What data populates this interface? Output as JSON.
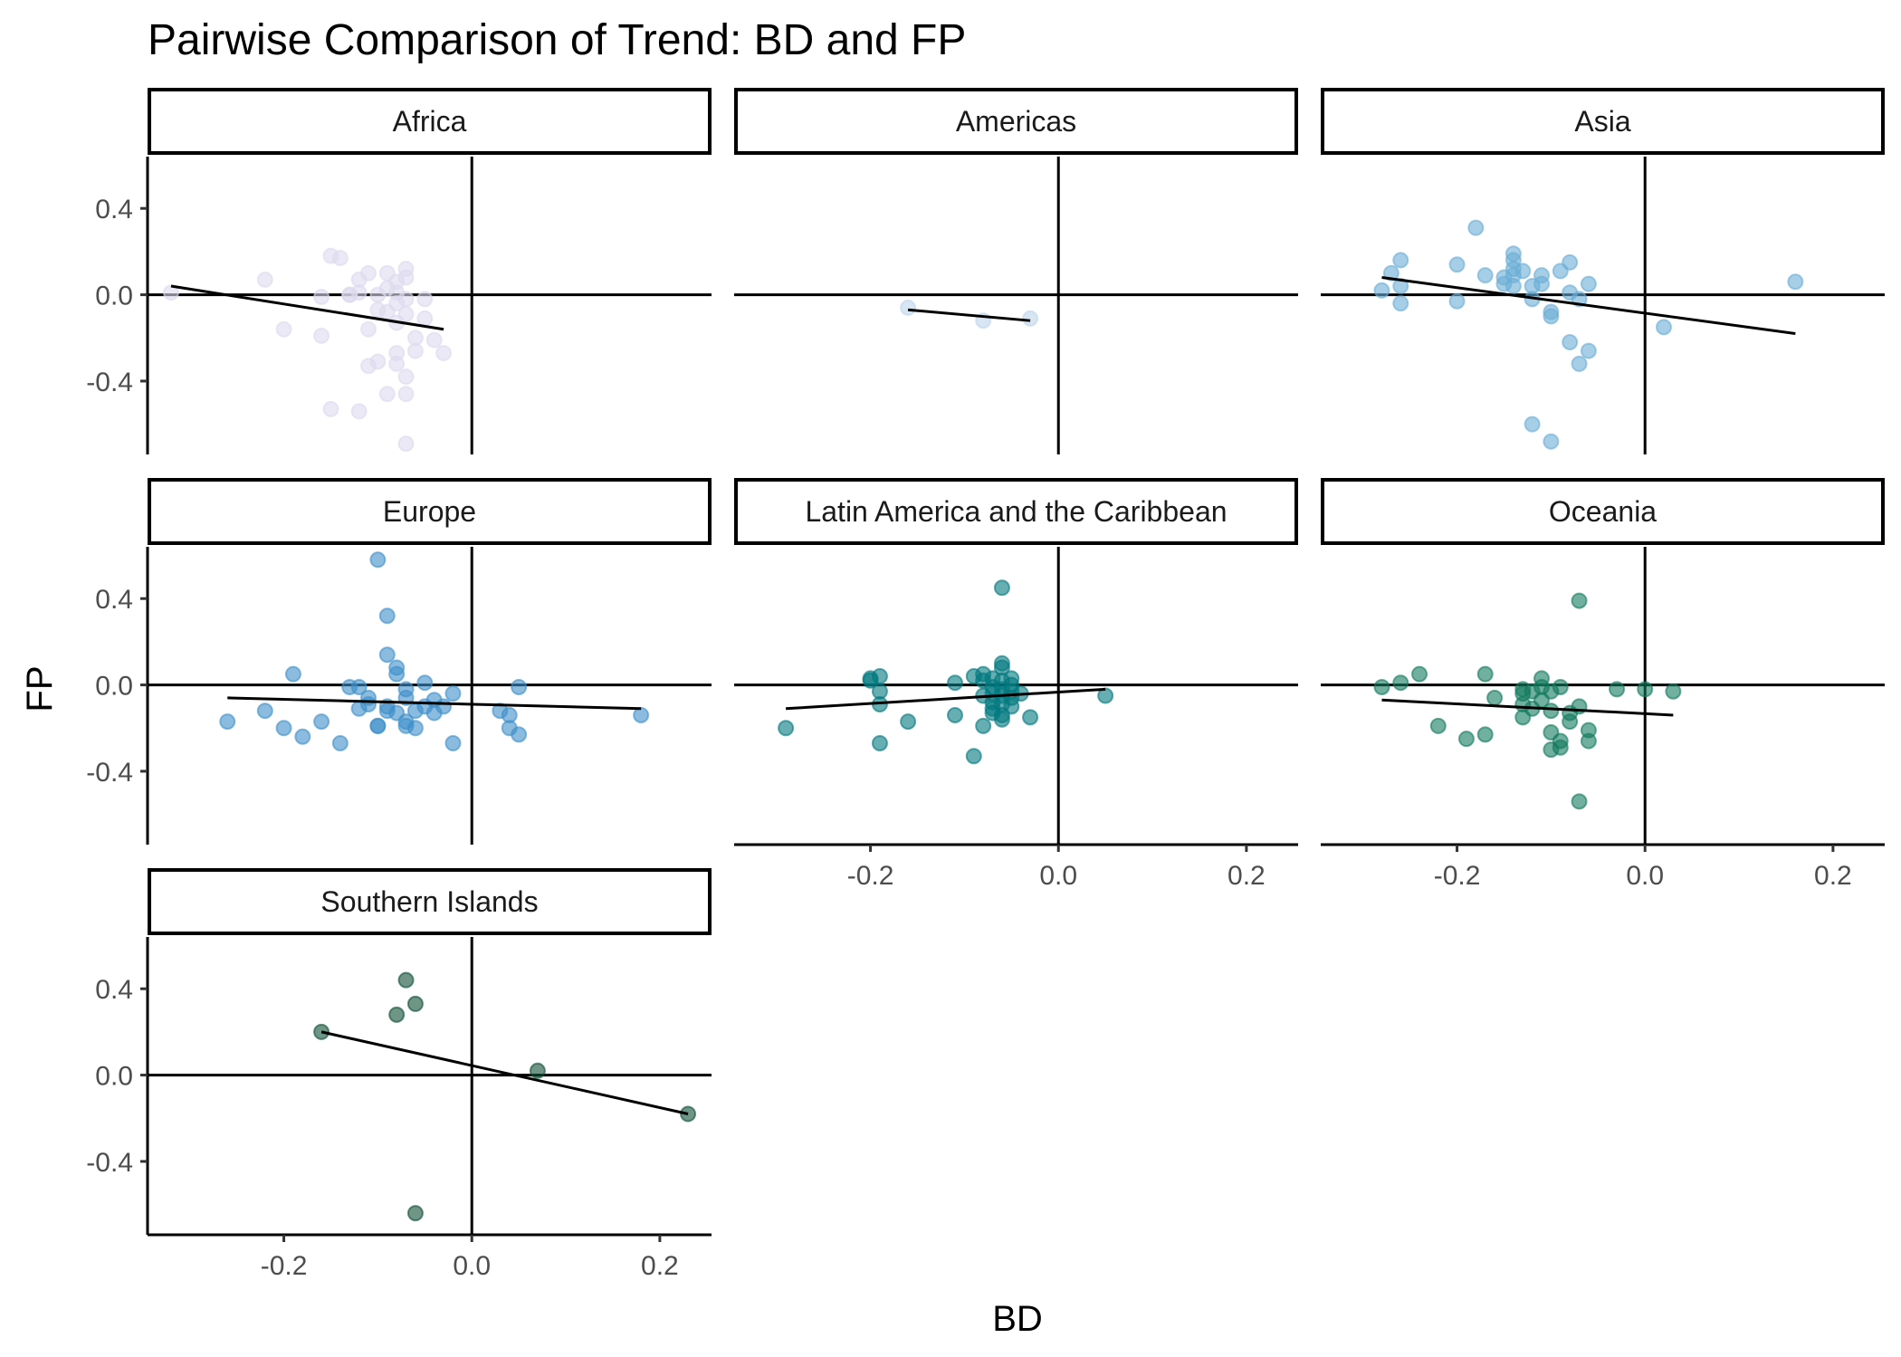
{
  "chart_data": {
    "type": "scatter",
    "title": "Pairwise Comparison of Trend: BD and FP",
    "xlabel": "BD",
    "ylabel": "FP",
    "xlim": [
      -0.345,
      0.255
    ],
    "ylim": [
      -0.74,
      0.64
    ],
    "x_ticks": [
      -0.2,
      0.0,
      0.2
    ],
    "x_tick_labels": [
      "-0.2",
      "0.0",
      "0.2"
    ],
    "y_ticks": [
      -0.4,
      0.0,
      0.4
    ],
    "y_tick_labels": [
      "-0.4",
      "0.0",
      "0.4"
    ],
    "reference_lines": {
      "x": 0,
      "y": 0
    },
    "grid": false,
    "legend": "none",
    "panels": [
      {
        "name": "Africa",
        "color": "#dcdaee",
        "trend": [
          [
            -0.32,
            0.04
          ],
          [
            -0.03,
            -0.16
          ]
        ],
        "points": [
          [
            -0.32,
            0.01
          ],
          [
            -0.22,
            0.07
          ],
          [
            -0.2,
            -0.16
          ],
          [
            -0.16,
            -0.01
          ],
          [
            -0.16,
            -0.19
          ],
          [
            -0.15,
            0.18
          ],
          [
            -0.14,
            0.17
          ],
          [
            -0.13,
            0.0
          ],
          [
            -0.12,
            0.07
          ],
          [
            -0.12,
            0.01
          ],
          [
            -0.11,
            0.1
          ],
          [
            -0.11,
            -0.16
          ],
          [
            -0.11,
            -0.33
          ],
          [
            -0.1,
            0.0
          ],
          [
            -0.1,
            -0.31
          ],
          [
            -0.09,
            0.1
          ],
          [
            -0.09,
            0.03
          ],
          [
            -0.09,
            -0.08
          ],
          [
            -0.09,
            -0.46
          ],
          [
            -0.08,
            0.06
          ],
          [
            -0.08,
            0.01
          ],
          [
            -0.08,
            -0.04
          ],
          [
            -0.08,
            -0.13
          ],
          [
            -0.08,
            -0.27
          ],
          [
            -0.08,
            -0.32
          ],
          [
            -0.07,
            0.12
          ],
          [
            -0.07,
            0.08
          ],
          [
            -0.07,
            -0.02
          ],
          [
            -0.07,
            -0.09
          ],
          [
            -0.07,
            -0.38
          ],
          [
            -0.07,
            -0.46
          ],
          [
            -0.07,
            -0.69
          ],
          [
            -0.06,
            -0.2
          ],
          [
            -0.06,
            -0.26
          ],
          [
            -0.05,
            -0.02
          ],
          [
            -0.05,
            -0.11
          ],
          [
            -0.04,
            -0.21
          ],
          [
            -0.03,
            -0.27
          ],
          [
            -0.15,
            -0.53
          ],
          [
            -0.12,
            -0.54
          ],
          [
            -0.13,
            0.0
          ],
          [
            -0.1,
            -0.07
          ]
        ]
      },
      {
        "name": "Americas",
        "color": "#bed5eb",
        "trend": [
          [
            -0.16,
            -0.07
          ],
          [
            -0.03,
            -0.12
          ]
        ],
        "points": [
          [
            -0.16,
            -0.06
          ],
          [
            -0.08,
            -0.12
          ],
          [
            -0.03,
            -0.11
          ]
        ]
      },
      {
        "name": "Asia",
        "color": "#6aaed6",
        "trend": [
          [
            -0.28,
            0.08
          ],
          [
            0.16,
            -0.18
          ]
        ],
        "points": [
          [
            -0.28,
            0.02
          ],
          [
            -0.27,
            0.1
          ],
          [
            -0.26,
            0.16
          ],
          [
            -0.26,
            0.04
          ],
          [
            -0.26,
            -0.04
          ],
          [
            -0.2,
            0.14
          ],
          [
            -0.2,
            -0.03
          ],
          [
            -0.18,
            0.31
          ],
          [
            -0.17,
            0.09
          ],
          [
            -0.15,
            0.08
          ],
          [
            -0.15,
            0.05
          ],
          [
            -0.14,
            0.19
          ],
          [
            -0.14,
            0.16
          ],
          [
            -0.14,
            0.12
          ],
          [
            -0.14,
            0.09
          ],
          [
            -0.14,
            0.04
          ],
          [
            -0.13,
            0.11
          ],
          [
            -0.12,
            0.04
          ],
          [
            -0.12,
            -0.02
          ],
          [
            -0.11,
            0.09
          ],
          [
            -0.11,
            0.05
          ],
          [
            -0.1,
            -0.08
          ],
          [
            -0.1,
            -0.1
          ],
          [
            -0.09,
            0.11
          ],
          [
            -0.08,
            0.15
          ],
          [
            -0.08,
            0.01
          ],
          [
            -0.08,
            -0.22
          ],
          [
            -0.07,
            -0.02
          ],
          [
            -0.07,
            -0.32
          ],
          [
            -0.06,
            0.05
          ],
          [
            -0.06,
            -0.26
          ],
          [
            0.02,
            -0.15
          ],
          [
            0.16,
            0.06
          ],
          [
            -0.12,
            -0.6
          ],
          [
            -0.1,
            -0.68
          ]
        ]
      },
      {
        "name": "Europe",
        "color": "#3d8fca",
        "trend": [
          [
            -0.26,
            -0.06
          ],
          [
            0.18,
            -0.11
          ]
        ],
        "points": [
          [
            -0.26,
            -0.17
          ],
          [
            -0.22,
            -0.12
          ],
          [
            -0.2,
            -0.2
          ],
          [
            -0.19,
            0.05
          ],
          [
            -0.18,
            -0.24
          ],
          [
            -0.16,
            -0.17
          ],
          [
            -0.14,
            -0.27
          ],
          [
            -0.13,
            -0.01
          ],
          [
            -0.12,
            -0.01
          ],
          [
            -0.12,
            -0.11
          ],
          [
            -0.11,
            -0.06
          ],
          [
            -0.11,
            -0.09
          ],
          [
            -0.1,
            -0.19
          ],
          [
            -0.1,
            -0.19
          ],
          [
            -0.1,
            0.58
          ],
          [
            -0.09,
            0.32
          ],
          [
            -0.09,
            0.14
          ],
          [
            -0.09,
            -0.1
          ],
          [
            -0.09,
            -0.12
          ],
          [
            -0.08,
            0.08
          ],
          [
            -0.08,
            0.05
          ],
          [
            -0.08,
            -0.13
          ],
          [
            -0.07,
            -0.02
          ],
          [
            -0.07,
            -0.06
          ],
          [
            -0.07,
            -0.17
          ],
          [
            -0.07,
            -0.19
          ],
          [
            -0.06,
            -0.12
          ],
          [
            -0.06,
            -0.2
          ],
          [
            -0.05,
            0.01
          ],
          [
            -0.05,
            -0.1
          ],
          [
            -0.04,
            -0.07
          ],
          [
            -0.04,
            -0.13
          ],
          [
            -0.03,
            -0.1
          ],
          [
            -0.02,
            -0.04
          ],
          [
            -0.02,
            -0.27
          ],
          [
            0.03,
            -0.12
          ],
          [
            0.04,
            -0.14
          ],
          [
            0.04,
            -0.2
          ],
          [
            0.05,
            -0.01
          ],
          [
            0.05,
            -0.23
          ],
          [
            0.18,
            -0.14
          ]
        ]
      },
      {
        "name": "Latin America and the Caribbean",
        "color": "#00787f",
        "trend": [
          [
            -0.29,
            -0.11
          ],
          [
            0.05,
            -0.02
          ]
        ],
        "points": [
          [
            -0.29,
            -0.2
          ],
          [
            -0.2,
            0.03
          ],
          [
            -0.2,
            0.02
          ],
          [
            -0.19,
            0.04
          ],
          [
            -0.19,
            -0.03
          ],
          [
            -0.19,
            -0.09
          ],
          [
            -0.19,
            -0.27
          ],
          [
            -0.16,
            -0.17
          ],
          [
            -0.11,
            0.01
          ],
          [
            -0.11,
            -0.14
          ],
          [
            -0.09,
            0.04
          ],
          [
            -0.09,
            -0.33
          ],
          [
            -0.08,
            0.05
          ],
          [
            -0.08,
            0.02
          ],
          [
            -0.08,
            -0.05
          ],
          [
            -0.08,
            -0.19
          ],
          [
            -0.07,
            0.03
          ],
          [
            -0.07,
            -0.01
          ],
          [
            -0.07,
            -0.04
          ],
          [
            -0.07,
            -0.08
          ],
          [
            -0.07,
            -0.11
          ],
          [
            -0.07,
            -0.13
          ],
          [
            -0.06,
            0.45
          ],
          [
            -0.06,
            0.1
          ],
          [
            -0.06,
            0.08
          ],
          [
            -0.06,
            0.02
          ],
          [
            -0.06,
            -0.02
          ],
          [
            -0.06,
            -0.05
          ],
          [
            -0.06,
            -0.09
          ],
          [
            -0.06,
            -0.14
          ],
          [
            -0.06,
            -0.16
          ],
          [
            -0.05,
            0.03
          ],
          [
            -0.05,
            0.0
          ],
          [
            -0.05,
            -0.03
          ],
          [
            -0.05,
            -0.06
          ],
          [
            -0.05,
            -0.1
          ],
          [
            -0.04,
            -0.04
          ],
          [
            -0.03,
            -0.15
          ],
          [
            0.05,
            -0.05
          ]
        ]
      },
      {
        "name": "Oceania",
        "color": "#137a5e",
        "trend": [
          [
            -0.28,
            -0.07
          ],
          [
            0.03,
            -0.14
          ]
        ],
        "points": [
          [
            -0.28,
            -0.01
          ],
          [
            -0.26,
            0.01
          ],
          [
            -0.24,
            0.05
          ],
          [
            -0.22,
            -0.19
          ],
          [
            -0.19,
            -0.25
          ],
          [
            -0.17,
            0.05
          ],
          [
            -0.17,
            -0.23
          ],
          [
            -0.16,
            -0.06
          ],
          [
            -0.13,
            -0.02
          ],
          [
            -0.13,
            -0.04
          ],
          [
            -0.13,
            -0.09
          ],
          [
            -0.13,
            -0.15
          ],
          [
            -0.12,
            -0.03
          ],
          [
            -0.12,
            -0.11
          ],
          [
            -0.11,
            0.03
          ],
          [
            -0.11,
            -0.01
          ],
          [
            -0.11,
            -0.07
          ],
          [
            -0.1,
            -0.03
          ],
          [
            -0.1,
            -0.12
          ],
          [
            -0.1,
            -0.22
          ],
          [
            -0.1,
            -0.3
          ],
          [
            -0.09,
            -0.01
          ],
          [
            -0.09,
            -0.26
          ],
          [
            -0.09,
            -0.29
          ],
          [
            -0.08,
            -0.13
          ],
          [
            -0.08,
            -0.17
          ],
          [
            -0.07,
            0.39
          ],
          [
            -0.07,
            -0.1
          ],
          [
            -0.07,
            -0.54
          ],
          [
            -0.06,
            -0.21
          ],
          [
            -0.06,
            -0.26
          ],
          [
            -0.03,
            -0.02
          ],
          [
            0.0,
            -0.02
          ],
          [
            0.03,
            -0.03
          ]
        ]
      },
      {
        "name": "Southern Islands",
        "color": "#0d4f35",
        "trend": [
          [
            -0.16,
            0.2
          ],
          [
            0.23,
            -0.18
          ]
        ],
        "points": [
          [
            -0.16,
            0.2
          ],
          [
            -0.08,
            0.28
          ],
          [
            -0.07,
            0.44
          ],
          [
            -0.06,
            0.33
          ],
          [
            -0.06,
            -0.64
          ],
          [
            0.07,
            0.02
          ],
          [
            0.23,
            -0.18
          ]
        ]
      }
    ]
  }
}
